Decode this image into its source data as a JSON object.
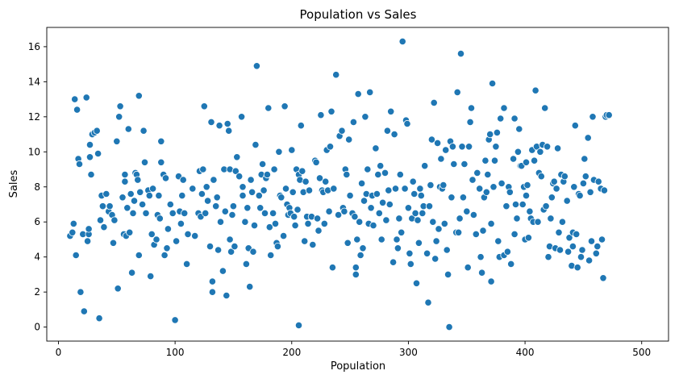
{
  "colors": {
    "series": "#1f77b4"
  },
  "chart_data": {
    "type": "scatter",
    "title": "Population vs Sales",
    "xlabel": "Population",
    "ylabel": "Sales",
    "xlim": [
      -10,
      523
    ],
    "ylim": [
      -0.8,
      17.1
    ],
    "xticks": [
      0,
      100,
      200,
      300,
      400,
      500
    ],
    "yticks": [
      0,
      2,
      4,
      6,
      8,
      10,
      12,
      14,
      16
    ],
    "grid": false,
    "legend": "none",
    "points": [
      [
        10,
        5.2
      ],
      [
        12,
        5.4
      ],
      [
        13,
        5.9
      ],
      [
        14,
        13.0
      ],
      [
        15,
        4.1
      ],
      [
        16,
        12.4
      ],
      [
        17,
        9.6
      ],
      [
        18,
        9.3
      ],
      [
        19,
        2.0
      ],
      [
        21,
        5.3
      ],
      [
        22,
        0.9
      ],
      [
        24,
        13.1
      ],
      [
        25,
        4.9
      ],
      [
        26,
        5.3
      ],
      [
        26,
        5.6
      ],
      [
        27,
        10.4
      ],
      [
        27,
        9.7
      ],
      [
        28,
        8.7
      ],
      [
        29,
        11.0
      ],
      [
        31,
        11.1
      ],
      [
        33,
        11.2
      ],
      [
        34,
        9.9
      ],
      [
        35,
        0.5
      ],
      [
        36,
        6.1
      ],
      [
        37,
        7.5
      ],
      [
        38,
        6.9
      ],
      [
        39,
        5.7
      ],
      [
        41,
        7.6
      ],
      [
        43,
        6.6
      ],
      [
        44,
        6.9
      ],
      [
        46,
        6.4
      ],
      [
        47,
        4.8
      ],
      [
        48,
        6.1
      ],
      [
        50,
        10.6
      ],
      [
        51,
        2.2
      ],
      [
        52,
        12.0
      ],
      [
        53,
        12.6
      ],
      [
        55,
        7.4
      ],
      [
        56,
        5.3
      ],
      [
        57,
        8.3
      ],
      [
        57,
        8.7
      ],
      [
        58,
        5.2
      ],
      [
        59,
        6.8
      ],
      [
        60,
        11.3
      ],
      [
        61,
        5.4
      ],
      [
        62,
        7.6
      ],
      [
        63,
        3.1
      ],
      [
        64,
        6.5
      ],
      [
        65,
        7.2
      ],
      [
        66,
        8.8
      ],
      [
        67,
        8.7
      ],
      [
        68,
        8.4
      ],
      [
        69,
        13.2
      ],
      [
        69,
        4.1
      ],
      [
        70,
        7.7
      ],
      [
        72,
        7.0
      ],
      [
        73,
        11.2
      ],
      [
        74,
        9.4
      ],
      [
        75,
        6.5
      ],
      [
        77,
        7.8
      ],
      [
        78,
        7.5
      ],
      [
        79,
        2.9
      ],
      [
        80,
        5.3
      ],
      [
        81,
        7.9
      ],
      [
        82,
        4.7
      ],
      [
        84,
        5.0
      ],
      [
        85,
        6.4
      ],
      [
        86,
        7.5
      ],
      [
        87,
        6.2
      ],
      [
        88,
        9.4
      ],
      [
        88,
        10.6
      ],
      [
        90,
        8.7
      ],
      [
        91,
        4.1
      ],
      [
        92,
        8.5
      ],
      [
        93,
        4.5
      ],
      [
        94,
        5.6
      ],
      [
        96,
        7.0
      ],
      [
        98,
        6.5
      ],
      [
        100,
        0.4
      ],
      [
        101,
        4.9
      ],
      [
        103,
        8.6
      ],
      [
        104,
        6.6
      ],
      [
        105,
        5.9
      ],
      [
        106,
        7.5
      ],
      [
        107,
        8.4
      ],
      [
        108,
        6.5
      ],
      [
        110,
        3.6
      ],
      [
        111,
        5.3
      ],
      [
        115,
        7.9
      ],
      [
        117,
        5.2
      ],
      [
        120,
        6.5
      ],
      [
        121,
        8.9
      ],
      [
        122,
        6.3
      ],
      [
        123,
        7.6
      ],
      [
        124,
        9.0
      ],
      [
        125,
        12.6
      ],
      [
        126,
        6.5
      ],
      [
        127,
        8.0
      ],
      [
        128,
        7.2
      ],
      [
        130,
        4.6
      ],
      [
        131,
        11.7
      ],
      [
        132,
        2.6
      ],
      [
        132,
        2.0
      ],
      [
        133,
        8.4
      ],
      [
        135,
        6.9
      ],
      [
        136,
        7.4
      ],
      [
        137,
        4.4
      ],
      [
        138,
        11.5
      ],
      [
        139,
        6.0
      ],
      [
        141,
        3.2
      ],
      [
        142,
        9.0
      ],
      [
        143,
        6.6
      ],
      [
        144,
        1.8
      ],
      [
        145,
        11.6
      ],
      [
        146,
        11.2
      ],
      [
        147,
        5.0
      ],
      [
        147,
        9.0
      ],
      [
        148,
        4.3
      ],
      [
        149,
        6.4
      ],
      [
        150,
        6.9
      ],
      [
        151,
        4.6
      ],
      [
        152,
        8.9
      ],
      [
        153,
        9.7
      ],
      [
        155,
        8.6
      ],
      [
        157,
        12.0
      ],
      [
        158,
        7.5
      ],
      [
        158,
        8.0
      ],
      [
        160,
        6.0
      ],
      [
        161,
        3.6
      ],
      [
        162,
        6.8
      ],
      [
        163,
        4.5
      ],
      [
        164,
        2.3
      ],
      [
        165,
        8.4
      ],
      [
        166,
        7.7
      ],
      [
        167,
        4.3
      ],
      [
        168,
        5.8
      ],
      [
        169,
        10.4
      ],
      [
        170,
        14.9
      ],
      [
        172,
        7.5
      ],
      [
        173,
        6.8
      ],
      [
        174,
        8.7
      ],
      [
        175,
        9.3
      ],
      [
        176,
        7.8
      ],
      [
        177,
        6.5
      ],
      [
        178,
        8.5
      ],
      [
        179,
        8.7
      ],
      [
        180,
        12.5
      ],
      [
        181,
        5.7
      ],
      [
        182,
        4.1
      ],
      [
        184,
        6.5
      ],
      [
        185,
        9.0
      ],
      [
        186,
        5.9
      ],
      [
        187,
        4.8
      ],
      [
        188,
        4.6
      ],
      [
        189,
        10.0
      ],
      [
        190,
        7.5
      ],
      [
        191,
        7.4
      ],
      [
        193,
        5.2
      ],
      [
        194,
        12.6
      ],
      [
        195,
        7.9
      ],
      [
        196,
        7.0
      ],
      [
        197,
        6.4
      ],
      [
        198,
        6.8
      ],
      [
        199,
        6.5
      ],
      [
        200,
        10.1
      ],
      [
        201,
        7.7
      ],
      [
        202,
        6.3
      ],
      [
        203,
        5.8
      ],
      [
        204,
        9.0
      ],
      [
        205,
        6.7
      ],
      [
        206,
        0.1
      ],
      [
        206,
        8.7
      ],
      [
        207,
        8.4
      ],
      [
        208,
        11.5
      ],
      [
        209,
        8.9
      ],
      [
        210,
        7.7
      ],
      [
        211,
        4.9
      ],
      [
        212,
        8.3
      ],
      [
        213,
        6.3
      ],
      [
        214,
        5.9
      ],
      [
        215,
        7.8
      ],
      [
        217,
        6.3
      ],
      [
        218,
        4.7
      ],
      [
        220,
        9.5
      ],
      [
        221,
        9.4
      ],
      [
        222,
        6.2
      ],
      [
        223,
        5.5
      ],
      [
        224,
        8.5
      ],
      [
        225,
        12.1
      ],
      [
        226,
        7.8
      ],
      [
        227,
        7.7
      ],
      [
        228,
        5.9
      ],
      [
        229,
        8.3
      ],
      [
        230,
        10.1
      ],
      [
        231,
        7.8
      ],
      [
        232,
        6.6
      ],
      [
        233,
        10.3
      ],
      [
        234,
        12.3
      ],
      [
        235,
        3.4
      ],
      [
        236,
        7.9
      ],
      [
        238,
        14.4
      ],
      [
        240,
        6.4
      ],
      [
        241,
        10.9
      ],
      [
        243,
        11.2
      ],
      [
        244,
        6.8
      ],
      [
        245,
        6.6
      ],
      [
        246,
        9.0
      ],
      [
        247,
        8.7
      ],
      [
        248,
        4.8
      ],
      [
        249,
        10.7
      ],
      [
        250,
        7.5
      ],
      [
        252,
        6.5
      ],
      [
        253,
        11.7
      ],
      [
        254,
        6.3
      ],
      [
        255,
        3.0
      ],
      [
        255,
        3.4
      ],
      [
        256,
        5.0
      ],
      [
        257,
        13.3
      ],
      [
        258,
        6.0
      ],
      [
        259,
        4.1
      ],
      [
        260,
        8.2
      ],
      [
        261,
        4.5
      ],
      [
        262,
        7.2
      ],
      [
        263,
        12.0
      ],
      [
        264,
        7.6
      ],
      [
        265,
        9.0
      ],
      [
        266,
        5.9
      ],
      [
        267,
        13.4
      ],
      [
        268,
        6.8
      ],
      [
        269,
        7.5
      ],
      [
        270,
        5.8
      ],
      [
        272,
        10.2
      ],
      [
        273,
        7.6
      ],
      [
        274,
        8.7
      ],
      [
        275,
        6.5
      ],
      [
        276,
        9.2
      ],
      [
        277,
        5.0
      ],
      [
        278,
        7.1
      ],
      [
        280,
        8.8
      ],
      [
        281,
        6.1
      ],
      [
        282,
        11.2
      ],
      [
        283,
        7.8
      ],
      [
        284,
        7.0
      ],
      [
        285,
        12.3
      ],
      [
        287,
        3.7
      ],
      [
        288,
        11.0
      ],
      [
        289,
        7.9
      ],
      [
        290,
        5.0
      ],
      [
        291,
        4.5
      ],
      [
        292,
        6.2
      ],
      [
        293,
        8.7
      ],
      [
        294,
        5.4
      ],
      [
        295,
        16.3
      ],
      [
        297,
        7.9
      ],
      [
        298,
        11.8
      ],
      [
        299,
        11.6
      ],
      [
        300,
        6.8
      ],
      [
        301,
        4.2
      ],
      [
        302,
        3.6
      ],
      [
        303,
        6.2
      ],
      [
        304,
        8.3
      ],
      [
        305,
        7.6
      ],
      [
        306,
        6.5
      ],
      [
        307,
        2.5
      ],
      [
        308,
        6.1
      ],
      [
        309,
        4.8
      ],
      [
        310,
        7.9
      ],
      [
        311,
        7.5
      ],
      [
        312,
        6.5
      ],
      [
        313,
        6.9
      ],
      [
        314,
        9.2
      ],
      [
        316,
        4.2
      ],
      [
        317,
        1.4
      ],
      [
        318,
        6.9
      ],
      [
        319,
        8.1
      ],
      [
        320,
        10.7
      ],
      [
        321,
        6.0
      ],
      [
        322,
        12.8
      ],
      [
        323,
        3.9
      ],
      [
        324,
        4.9
      ],
      [
        325,
        10.5
      ],
      [
        326,
        5.6
      ],
      [
        327,
        8.0
      ],
      [
        328,
        9.6
      ],
      [
        329,
        7.9
      ],
      [
        330,
        8.1
      ],
      [
        331,
        5.9
      ],
      [
        332,
        10.1
      ],
      [
        333,
        4.4
      ],
      [
        334,
        3.0
      ],
      [
        335,
        0.0
      ],
      [
        336,
        10.6
      ],
      [
        337,
        7.4
      ],
      [
        338,
        10.3
      ],
      [
        339,
        9.3
      ],
      [
        341,
        5.4
      ],
      [
        342,
        13.4
      ],
      [
        343,
        5.4
      ],
      [
        344,
        6.2
      ],
      [
        345,
        15.6
      ],
      [
        346,
        10.3
      ],
      [
        347,
        7.4
      ],
      [
        348,
        9.3
      ],
      [
        350,
        6.6
      ],
      [
        351,
        3.4
      ],
      [
        352,
        10.3
      ],
      [
        353,
        11.7
      ],
      [
        354,
        12.5
      ],
      [
        355,
        8.4
      ],
      [
        356,
        6.4
      ],
      [
        358,
        5.3
      ],
      [
        359,
        8.8
      ],
      [
        361,
        7.9
      ],
      [
        362,
        4.0
      ],
      [
        363,
        3.1
      ],
      [
        364,
        5.5
      ],
      [
        365,
        7.4
      ],
      [
        366,
        9.5
      ],
      [
        367,
        7.7
      ],
      [
        368,
        8.7
      ],
      [
        369,
        10.7
      ],
      [
        370,
        11.0
      ],
      [
        371,
        5.9
      ],
      [
        371,
        2.6
      ],
      [
        372,
        13.9
      ],
      [
        373,
        8.0
      ],
      [
        374,
        9.5
      ],
      [
        375,
        10.3
      ],
      [
        376,
        11.1
      ],
      [
        377,
        4.9
      ],
      [
        378,
        4.0
      ],
      [
        379,
        11.9
      ],
      [
        380,
        8.2
      ],
      [
        382,
        4.1
      ],
      [
        382,
        12.5
      ],
      [
        384,
        6.9
      ],
      [
        385,
        4.3
      ],
      [
        386,
        8.0
      ],
      [
        387,
        7.7
      ],
      [
        388,
        3.6
      ],
      [
        390,
        9.6
      ],
      [
        391,
        5.3
      ],
      [
        391,
        11.9
      ],
      [
        392,
        7.0
      ],
      [
        393,
        6.2
      ],
      [
        394,
        10.0
      ],
      [
        395,
        11.3
      ],
      [
        396,
        9.2
      ],
      [
        397,
        9.2
      ],
      [
        398,
        7.0
      ],
      [
        399,
        8.0
      ],
      [
        400,
        5.0
      ],
      [
        401,
        9.4
      ],
      [
        401,
        7.5
      ],
      [
        402,
        8.1
      ],
      [
        403,
        5.1
      ],
      [
        404,
        6.6
      ],
      [
        405,
        6.2
      ],
      [
        406,
        10.1
      ],
      [
        407,
        6.0
      ],
      [
        408,
        9.5
      ],
      [
        409,
        13.5
      ],
      [
        410,
        10.3
      ],
      [
        411,
        6.0
      ],
      [
        412,
        8.8
      ],
      [
        413,
        10.0
      ],
      [
        414,
        8.6
      ],
      [
        415,
        10.4
      ],
      [
        416,
        6.7
      ],
      [
        417,
        12.5
      ],
      [
        418,
        6.9
      ],
      [
        419,
        10.3
      ],
      [
        420,
        4.0
      ],
      [
        421,
        4.6
      ],
      [
        422,
        6.2
      ],
      [
        423,
        7.4
      ],
      [
        424,
        8.2
      ],
      [
        425,
        8.3
      ],
      [
        426,
        4.5
      ],
      [
        427,
        7.9
      ],
      [
        428,
        10.2
      ],
      [
        429,
        5.4
      ],
      [
        430,
        4.4
      ],
      [
        431,
        8.7
      ],
      [
        432,
        6.0
      ],
      [
        433,
        8.3
      ],
      [
        434,
        8.6
      ],
      [
        436,
        7.2
      ],
      [
        437,
        4.3
      ],
      [
        438,
        5.1
      ],
      [
        440,
        3.5
      ],
      [
        441,
        4.6
      ],
      [
        441,
        5.4
      ],
      [
        442,
        8.0
      ],
      [
        443,
        11.5
      ],
      [
        444,
        5.3
      ],
      [
        445,
        3.4
      ],
      [
        446,
        7.6
      ],
      [
        447,
        7.5
      ],
      [
        448,
        4.0
      ],
      [
        449,
        4.4
      ],
      [
        450,
        8.2
      ],
      [
        451,
        9.6
      ],
      [
        452,
        8.6
      ],
      [
        454,
        10.8
      ],
      [
        455,
        3.8
      ],
      [
        456,
        7.7
      ],
      [
        457,
        4.9
      ],
      [
        458,
        12.0
      ],
      [
        459,
        8.4
      ],
      [
        461,
        4.2
      ],
      [
        462,
        4.6
      ],
      [
        463,
        8.3
      ],
      [
        465,
        7.9
      ],
      [
        466,
        5.0
      ],
      [
        467,
        2.8
      ],
      [
        468,
        7.8
      ],
      [
        469,
        12.0
      ],
      [
        470,
        12.1
      ],
      [
        472,
        12.1
      ]
    ]
  }
}
